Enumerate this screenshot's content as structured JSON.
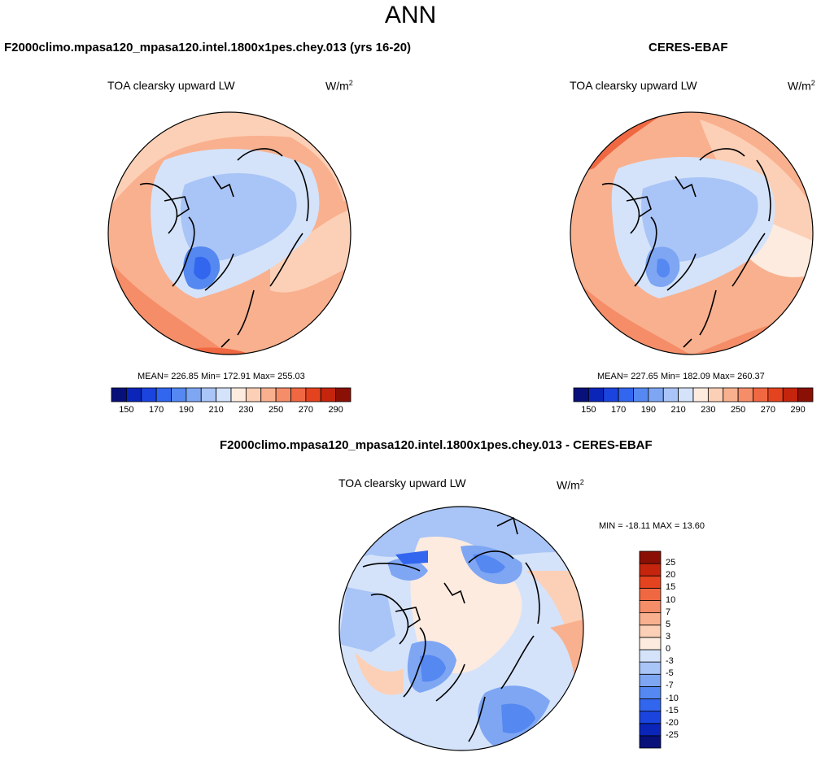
{
  "title": "ANN",
  "panels": [
    {
      "title": "F2000climo.mpasa120_mpasa120.intel.1800x1pes.chey.013 (yrs 16-20)",
      "variable": "TOA clearsky upward LW",
      "units_base": "W/m",
      "units_exp": "2",
      "stats": "MEAN= 226.85  Min= 172.91  Max= 255.03"
    },
    {
      "title": "CERES-EBAF",
      "variable": "TOA clearsky upward LW",
      "units_base": "W/m",
      "units_exp": "2",
      "stats": "MEAN= 227.65  Min= 182.09  Max= 260.37"
    },
    {
      "title": "F2000climo.mpasa120_mpasa120.intel.1800x1pes.chey.013 - CERES-EBAF",
      "variable": "TOA clearsky upward LW",
      "units_base": "W/m",
      "units_exp": "2",
      "stats": "MIN = -18.11 MAX =  13.60"
    }
  ],
  "colorbar_abs": {
    "colors": [
      "#08107a",
      "#0a25b8",
      "#1a44dd",
      "#3366ee",
      "#5588f0",
      "#7ea6f3",
      "#a9c4f6",
      "#d4e3fa",
      "#fdebdf",
      "#fcd0b6",
      "#f9b08e",
      "#f58d68",
      "#f06842",
      "#e4431f",
      "#c5240d",
      "#8a1006"
    ],
    "labels": [
      "150",
      "170",
      "190",
      "210",
      "230",
      "250",
      "270",
      "290"
    ]
  },
  "colorbar_diff": {
    "colors": [
      "#08107a",
      "#0a25b8",
      "#1a44dd",
      "#3366ee",
      "#5588f0",
      "#7ea6f3",
      "#a9c4f6",
      "#d4e3fa",
      "#fdebdf",
      "#fcd0b6",
      "#f9b08e",
      "#f58d68",
      "#f06842",
      "#e4431f",
      "#c5240d",
      "#8a1006"
    ],
    "labels": [
      "25",
      "20",
      "15",
      "10",
      "7",
      "5",
      "3",
      "0",
      "-3",
      "-5",
      "-7",
      "-10",
      "-15",
      "-20",
      "-25"
    ]
  }
}
